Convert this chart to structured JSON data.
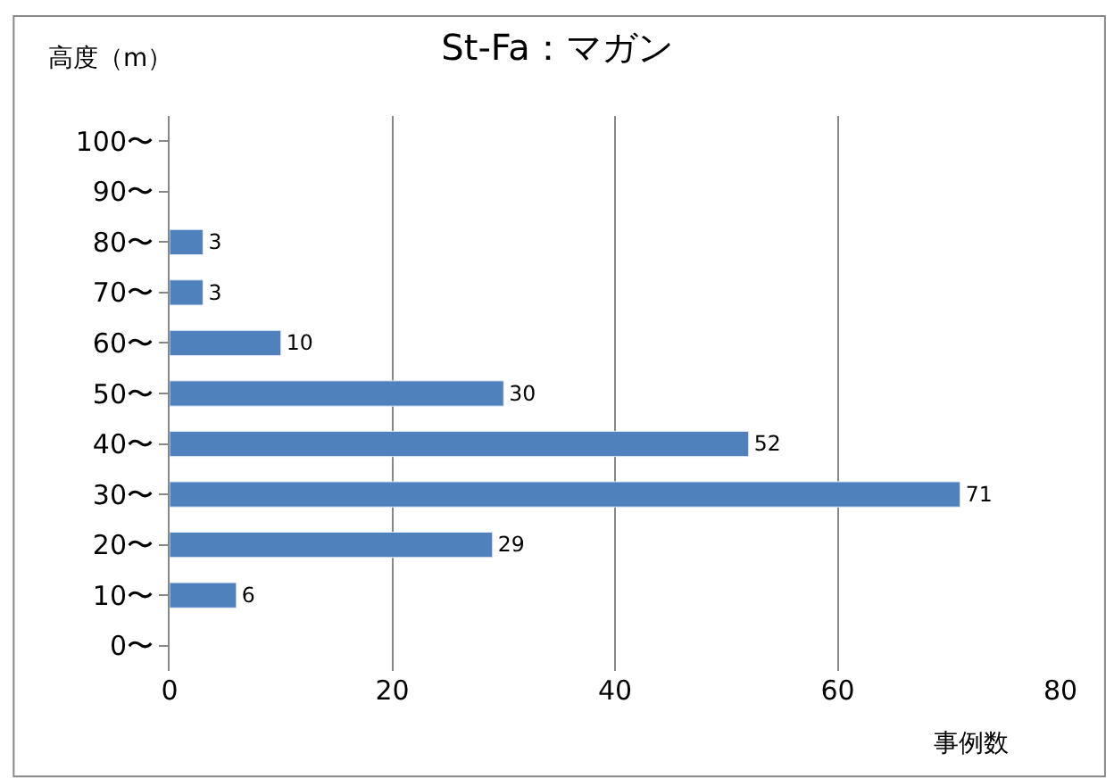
{
  "chart_data": {
    "type": "bar",
    "orientation": "horizontal",
    "title": "St-Fa：マガン",
    "ylabel": "高度（m）",
    "xlabel": "事例数",
    "categories": [
      "100〜",
      "90〜",
      "80〜",
      "70〜",
      "60〜",
      "50〜",
      "40〜",
      "30〜",
      "20〜",
      "10〜",
      "0〜"
    ],
    "values": [
      null,
      null,
      3,
      3,
      10,
      30,
      52,
      71,
      29,
      6,
      null
    ],
    "color": "#4f81bd",
    "xlim": [
      0,
      80
    ],
    "xticks": [
      0,
      20,
      40,
      60,
      80
    ],
    "grid": "x",
    "data_labels": true
  }
}
